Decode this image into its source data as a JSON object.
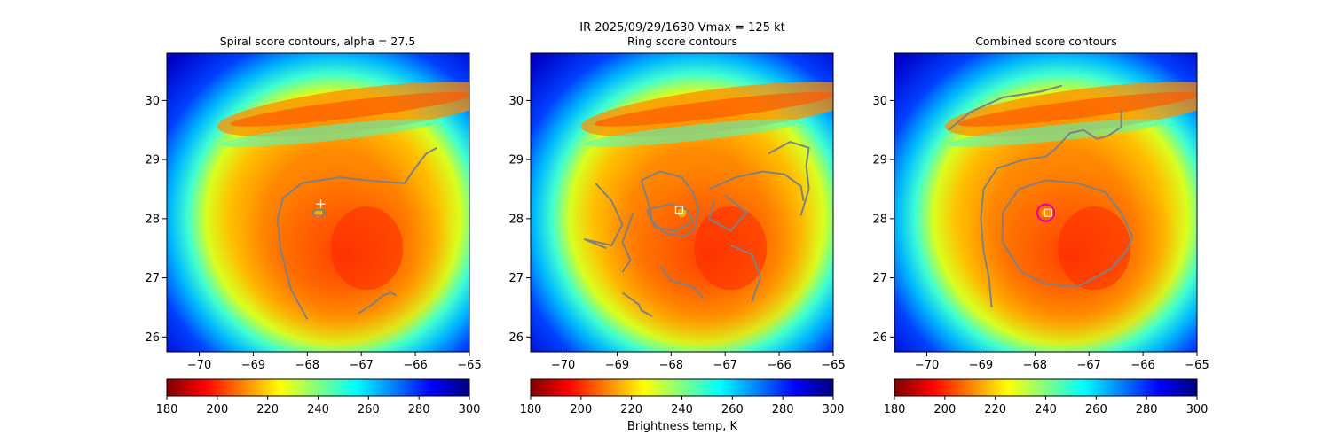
{
  "figure": {
    "suptitle_line1": "IR  2025/09/29/1630    Vmax = 125 kt",
    "colorbar_label": "Brightness temp, K"
  },
  "colormap": {
    "name": "jet_r",
    "stops": [
      "#800000",
      "#ff0000",
      "#ff8000",
      "#ffff00",
      "#80ff80",
      "#00ffff",
      "#0080ff",
      "#0000ff",
      "#000080"
    ]
  },
  "colors": {
    "contour": "#808080",
    "marker_center": "#ffffff",
    "combined_circle": "#dd00aa",
    "combined_marker": "#ff8c00"
  },
  "chart_data": [
    {
      "type": "heatmap",
      "title": "Spiral score contours, alpha = 27.5",
      "xlim": [
        -70.6,
        -65.0
      ],
      "ylim": [
        25.75,
        30.8
      ],
      "xticks": [
        -70,
        -69,
        -68,
        -67,
        -66,
        -65
      ],
      "xtick_labels": [
        "−70",
        "−69",
        "−68",
        "−67",
        "−66",
        "−65"
      ],
      "yticks": [
        26,
        27,
        28,
        29,
        30
      ],
      "ytick_labels": [
        "26",
        "27",
        "28",
        "29",
        "30"
      ],
      "storm_center": [
        -67.8,
        28.1
      ],
      "center_marker": {
        "type": "plus",
        "lon": -67.75,
        "lat": 28.25
      },
      "colorbar": {
        "vmin": 180,
        "vmax": 300,
        "ticks": [
          "180",
          "200",
          "220",
          "240",
          "260",
          "280",
          "300"
        ]
      },
      "contours": [
        [
          [
            -68.0,
            26.3
          ],
          [
            -68.3,
            26.8
          ],
          [
            -68.5,
            27.5
          ],
          [
            -68.55,
            28.0
          ],
          [
            -68.45,
            28.35
          ],
          [
            -68.1,
            28.6
          ],
          [
            -67.4,
            28.7
          ],
          [
            -66.9,
            28.65
          ],
          [
            -66.5,
            28.62
          ],
          [
            -66.2,
            28.6
          ],
          [
            -66.05,
            28.8
          ],
          [
            -65.8,
            29.1
          ],
          [
            -65.6,
            29.2
          ]
        ],
        [
          [
            -67.85,
            28.05
          ],
          [
            -67.7,
            28.05
          ],
          [
            -67.65,
            28.1
          ],
          [
            -67.7,
            28.15
          ],
          [
            -67.85,
            28.15
          ],
          [
            -67.9,
            28.1
          ],
          [
            -67.85,
            28.05
          ]
        ],
        [
          [
            -67.05,
            26.4
          ],
          [
            -66.8,
            26.55
          ],
          [
            -66.6,
            26.7
          ],
          [
            -66.45,
            26.75
          ],
          [
            -66.35,
            26.7
          ]
        ]
      ]
    },
    {
      "type": "heatmap",
      "title": "Ring score contours",
      "xlim": [
        -70.6,
        -65.0
      ],
      "ylim": [
        25.75,
        30.8
      ],
      "xticks": [
        -70,
        -69,
        -68,
        -67,
        -66,
        -65
      ],
      "xtick_labels": [
        "−70",
        "−69",
        "−68",
        "−67",
        "−66",
        "−65"
      ],
      "yticks": [
        26,
        27,
        28,
        29,
        30
      ],
      "ytick_labels": [
        "26",
        "27",
        "28",
        "29",
        "30"
      ],
      "storm_center": [
        -67.8,
        28.1
      ],
      "center_marker": {
        "type": "square",
        "lon": -67.85,
        "lat": 28.15
      },
      "colorbar": {
        "vmin": 180,
        "vmax": 300,
        "ticks": [
          "180",
          "200",
          "220",
          "240",
          "260",
          "280",
          "300"
        ]
      },
      "contours": [
        [
          [
            -68.55,
            28.65
          ],
          [
            -68.2,
            28.8
          ],
          [
            -67.8,
            28.7
          ],
          [
            -67.6,
            28.45
          ],
          [
            -67.5,
            28.2
          ],
          [
            -67.55,
            27.85
          ],
          [
            -67.75,
            27.7
          ],
          [
            -68.1,
            27.75
          ],
          [
            -68.35,
            27.95
          ],
          [
            -68.4,
            28.2
          ],
          [
            -68.55,
            28.65
          ]
        ],
        [
          [
            -68.45,
            28.15
          ],
          [
            -68.0,
            28.25
          ],
          [
            -67.7,
            28.15
          ],
          [
            -67.6,
            27.95
          ],
          [
            -67.9,
            27.8
          ],
          [
            -68.3,
            27.85
          ],
          [
            -68.45,
            28.15
          ]
        ],
        [
          [
            -68.7,
            28.1
          ],
          [
            -68.9,
            27.6
          ],
          [
            -68.75,
            27.3
          ],
          [
            -68.9,
            27.1
          ]
        ],
        [
          [
            -69.4,
            28.6
          ],
          [
            -69.1,
            28.3
          ],
          [
            -68.9,
            27.9
          ],
          [
            -69.1,
            27.55
          ],
          [
            -69.6,
            27.65
          ],
          [
            -69.2,
            27.5
          ]
        ],
        [
          [
            -67.3,
            28.5
          ],
          [
            -66.8,
            28.7
          ],
          [
            -66.3,
            28.8
          ],
          [
            -65.9,
            28.75
          ],
          [
            -65.6,
            28.55
          ],
          [
            -65.55,
            28.3
          ]
        ],
        [
          [
            -66.2,
            29.1
          ],
          [
            -65.8,
            29.3
          ],
          [
            -65.45,
            29.2
          ],
          [
            -65.5,
            28.9
          ],
          [
            -65.45,
            28.5
          ],
          [
            -65.55,
            28.2
          ],
          [
            -65.6,
            28.05
          ]
        ],
        [
          [
            -66.9,
            27.55
          ],
          [
            -66.5,
            27.4
          ],
          [
            -66.35,
            27.0
          ],
          [
            -66.45,
            26.75
          ],
          [
            -66.5,
            26.6
          ]
        ],
        [
          [
            -67.0,
            28.4
          ],
          [
            -66.6,
            28.1
          ],
          [
            -66.9,
            27.8
          ],
          [
            -67.3,
            28.0
          ],
          [
            -67.2,
            28.3
          ]
        ],
        [
          [
            -68.2,
            27.2
          ],
          [
            -68.0,
            26.95
          ],
          [
            -67.6,
            26.85
          ],
          [
            -67.4,
            26.65
          ]
        ],
        [
          [
            -68.9,
            26.75
          ],
          [
            -68.6,
            26.55
          ],
          [
            -68.55,
            26.45
          ],
          [
            -68.35,
            26.35
          ]
        ]
      ]
    },
    {
      "type": "heatmap",
      "title": "Combined score contours",
      "xlim": [
        -70.6,
        -65.0
      ],
      "ylim": [
        25.75,
        30.8
      ],
      "xticks": [
        -70,
        -69,
        -68,
        -67,
        -66,
        -65
      ],
      "xtick_labels": [
        "−70",
        "−69",
        "−68",
        "−67",
        "−66",
        "−65"
      ],
      "yticks": [
        26,
        27,
        28,
        29,
        30
      ],
      "ytick_labels": [
        "26",
        "27",
        "28",
        "29",
        "30"
      ],
      "storm_center": [
        -67.8,
        28.1
      ],
      "center_marker": {
        "type": "square",
        "lon": -67.75,
        "lat": 28.1
      },
      "circle_marker": {
        "lon": -67.8,
        "lat": 28.1
      },
      "colorbar": {
        "vmin": 180,
        "vmax": 300,
        "ticks": [
          "180",
          "200",
          "220",
          "240",
          "260",
          "280",
          "300"
        ]
      },
      "contours": [
        [
          [
            -68.6,
            28.1
          ],
          [
            -68.3,
            28.5
          ],
          [
            -67.8,
            28.65
          ],
          [
            -67.2,
            28.6
          ],
          [
            -66.7,
            28.45
          ],
          [
            -66.4,
            28.1
          ],
          [
            -66.2,
            27.7
          ],
          [
            -66.3,
            27.45
          ],
          [
            -66.6,
            27.15
          ],
          [
            -67.2,
            26.85
          ],
          [
            -67.8,
            26.9
          ],
          [
            -68.25,
            27.1
          ],
          [
            -68.6,
            27.6
          ],
          [
            -68.6,
            28.1
          ]
        ],
        [
          [
            -68.8,
            26.5
          ],
          [
            -68.85,
            27.0
          ],
          [
            -68.95,
            27.45
          ],
          [
            -69.0,
            28.0
          ],
          [
            -68.95,
            28.5
          ],
          [
            -68.7,
            28.85
          ],
          [
            -68.2,
            29.0
          ],
          [
            -67.8,
            29.05
          ],
          [
            -67.6,
            29.2
          ],
          [
            -67.35,
            29.45
          ],
          [
            -67.1,
            29.5
          ],
          [
            -66.85,
            29.35
          ],
          [
            -66.65,
            29.4
          ],
          [
            -66.4,
            29.55
          ],
          [
            -66.4,
            29.85
          ]
        ],
        [
          [
            -69.6,
            29.5
          ],
          [
            -69.2,
            29.8
          ],
          [
            -68.6,
            30.05
          ],
          [
            -67.9,
            30.15
          ],
          [
            -67.5,
            30.25
          ]
        ]
      ]
    }
  ]
}
